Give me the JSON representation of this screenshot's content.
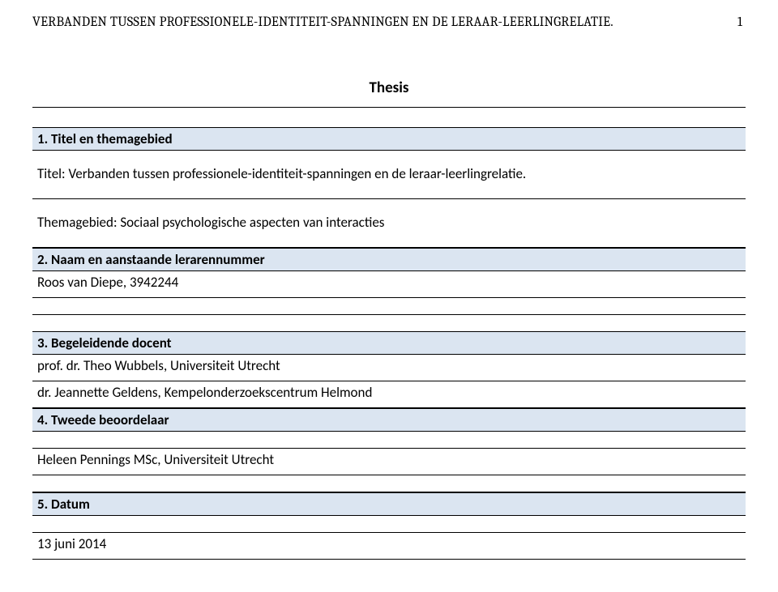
{
  "header": {
    "running_title": "VERBANDEN TUSSEN PROFESSIONELE-IDENTITEIT-SPANNINGEN EN DE LERAAR-LEERLINGRELATIE.",
    "page_number": "1"
  },
  "thesis_label": "Thesis",
  "sections": {
    "s1": {
      "header": "1. Titel en themagebied",
      "title_line": "Titel: Verbanden tussen professionele-identiteit-spanningen en de leraar-leerlingrelatie.",
      "theme_line": "Themagebied: Sociaal psychologische aspecten van interacties"
    },
    "s2": {
      "header": "2. Naam en aanstaande lerarennummer",
      "content": "Roos van Diepe, 3942244"
    },
    "s3": {
      "header": "3. Begeleidende docent",
      "line1": "prof. dr. Theo Wubbels, Universiteit Utrecht",
      "line2": "dr. Jeannette Geldens, Kempelonderzoekscentrum Helmond"
    },
    "s4": {
      "header": "4. Tweede beoordelaar",
      "content": "Heleen Pennings MSc, Universiteit Utrecht"
    },
    "s5": {
      "header": "5. Datum",
      "content": " 13 juni 2014"
    }
  }
}
